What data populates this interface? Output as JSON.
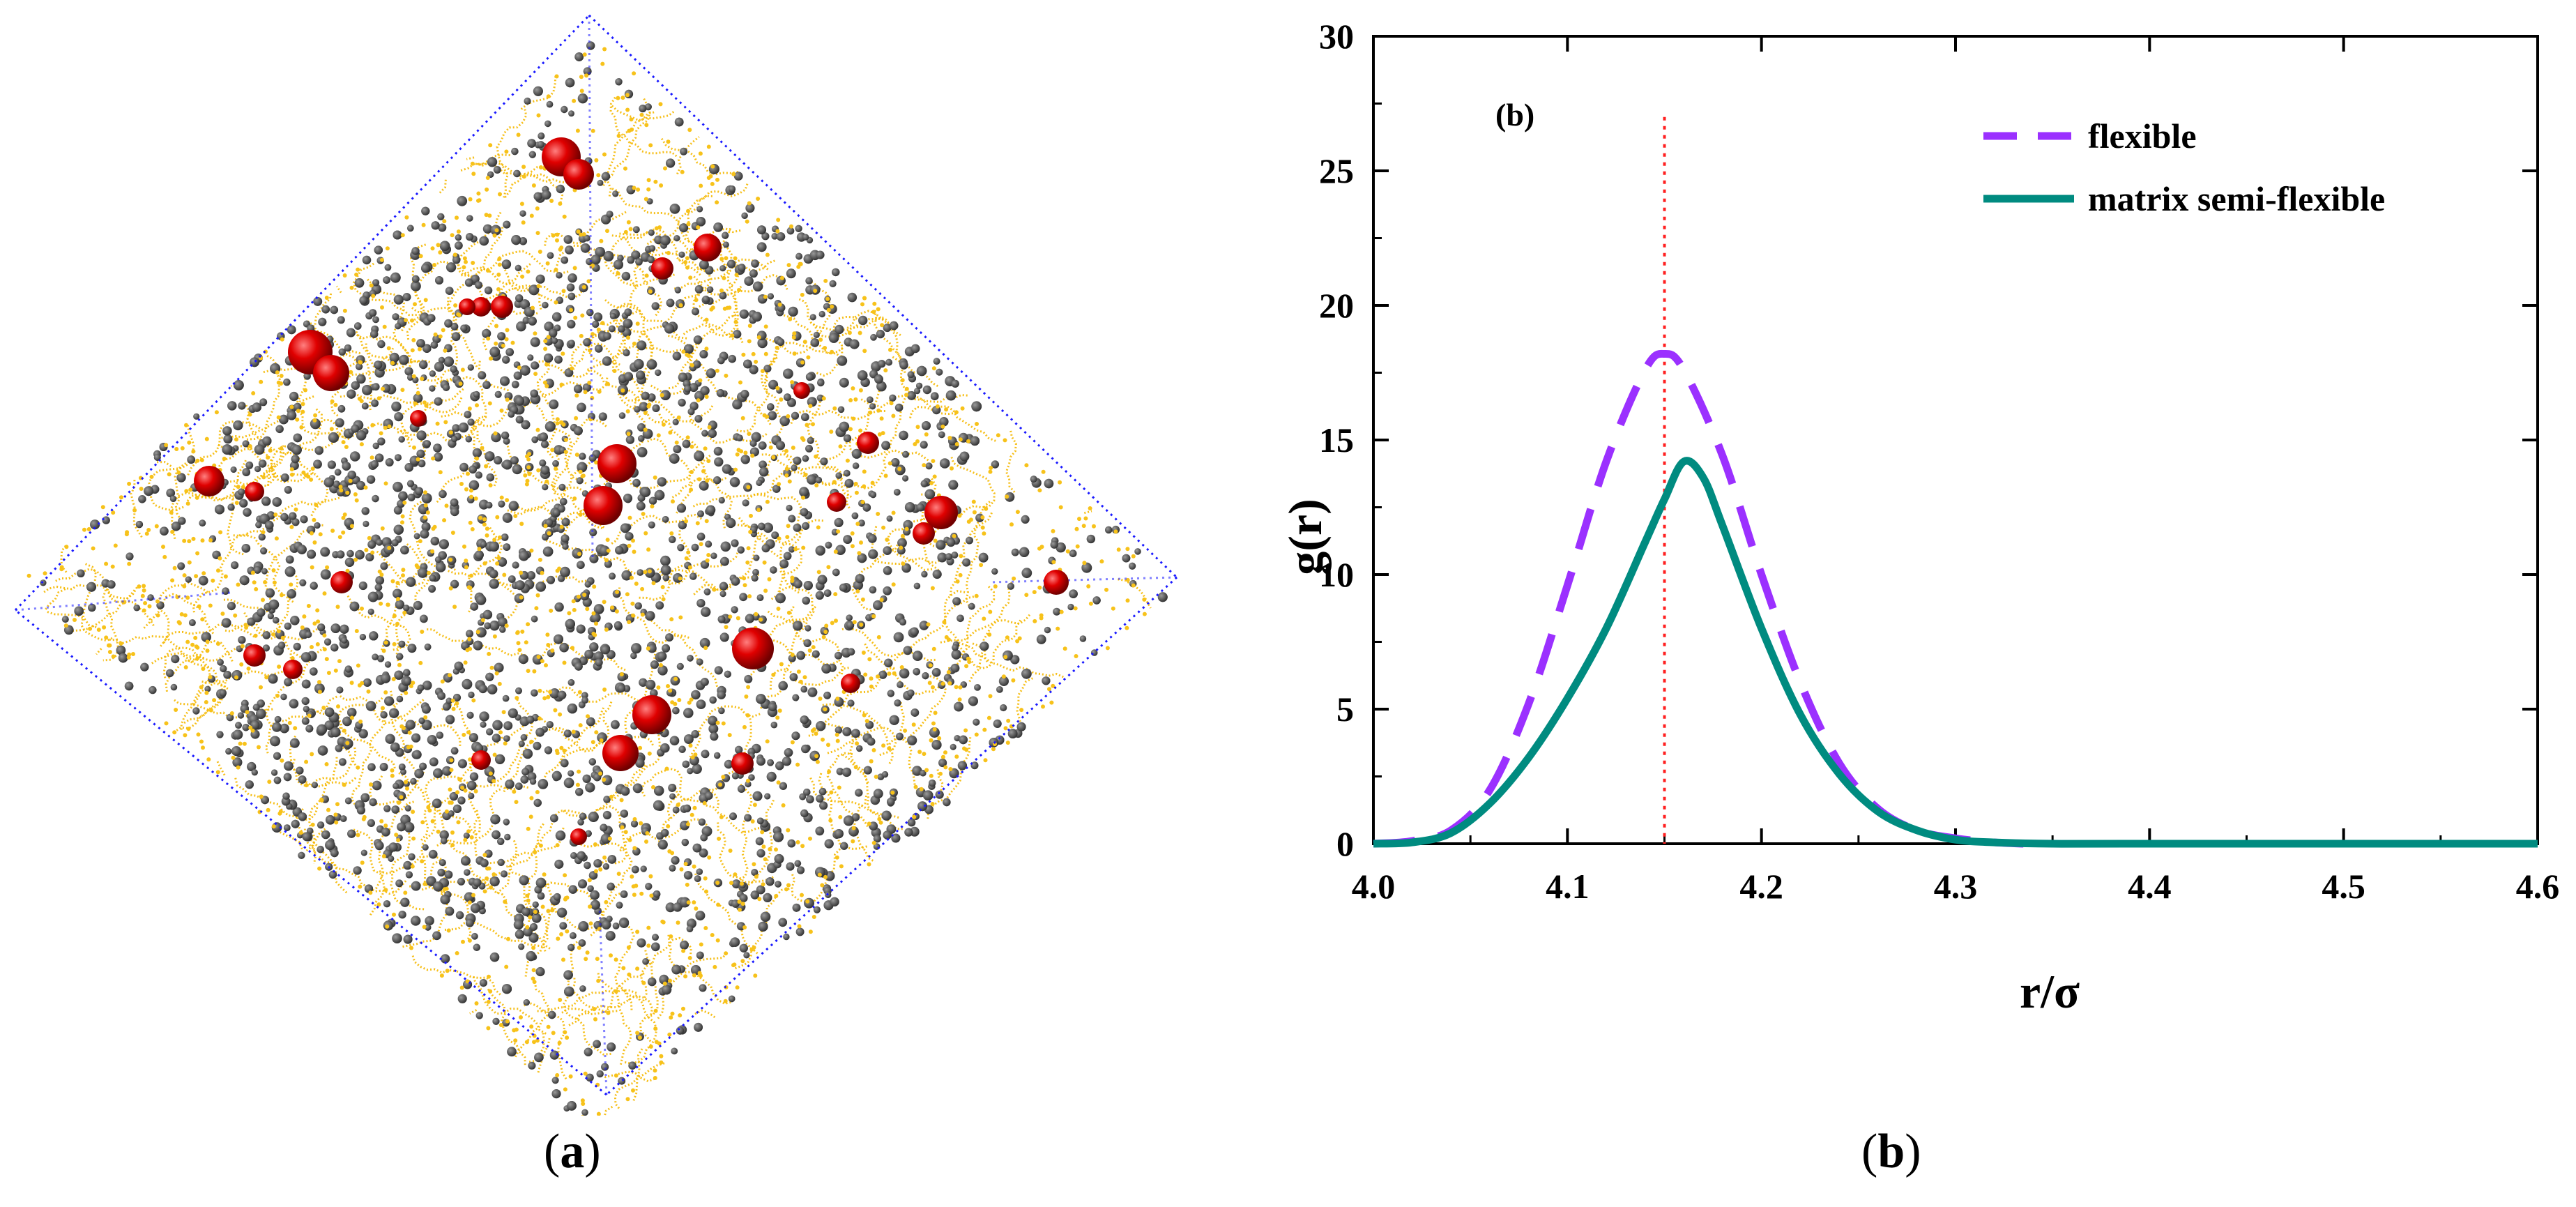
{
  "panels": {
    "a": {
      "caption_open": "(",
      "caption_letter": "a",
      "caption_close": ")",
      "description_colors": {
        "box_edge": "#1a1aff",
        "grey_beads": "#4a4a4a",
        "yellow_chains": "#f5b800",
        "red_particles": "#e00000"
      }
    },
    "b": {
      "caption_open": "(",
      "caption_letter": "b",
      "caption_close": ")"
    }
  },
  "chart_data": {
    "type": "line",
    "panel_label": "(b)",
    "xlabel": "r/σ",
    "ylabel": "g(r)",
    "xlim": [
      4.0,
      4.6
    ],
    "ylim": [
      0,
      30
    ],
    "xticks": [
      "4.0",
      "4.1",
      "4.2",
      "4.3",
      "4.4",
      "4.5",
      "4.6"
    ],
    "yticks": [
      "0",
      "5",
      "10",
      "15",
      "20",
      "25",
      "30"
    ],
    "reference_line_x": 4.15,
    "legend_position": "top-right",
    "series": [
      {
        "name": "flexible",
        "style": "dashed",
        "color": "#9b30ff",
        "x": [
          4.0,
          4.02,
          4.04,
          4.06,
          4.08,
          4.1,
          4.12,
          4.14,
          4.15,
          4.16,
          4.18,
          4.2,
          4.22,
          4.24,
          4.26,
          4.28,
          4.3,
          4.32,
          4.335
        ],
        "y": [
          0.0,
          0.1,
          0.5,
          2.0,
          5.2,
          9.6,
          14.2,
          17.6,
          18.2,
          17.6,
          14.4,
          10.0,
          6.0,
          3.0,
          1.3,
          0.5,
          0.2,
          0.05,
          0.0
        ]
      },
      {
        "name": "matrix semi-flexible",
        "style": "solid",
        "color": "#008b80",
        "x": [
          4.0,
          4.02,
          4.04,
          4.06,
          4.08,
          4.1,
          4.12,
          4.14,
          4.15,
          4.16,
          4.17,
          4.18,
          4.2,
          4.22,
          4.24,
          4.26,
          4.28,
          4.3,
          4.32,
          4.35,
          4.4,
          4.5,
          4.6
        ],
        "y": [
          0.0,
          0.05,
          0.4,
          1.5,
          3.2,
          5.4,
          8.0,
          11.2,
          12.8,
          14.2,
          13.6,
          11.8,
          8.0,
          4.8,
          2.6,
          1.2,
          0.5,
          0.15,
          0.05,
          0.0,
          0.0,
          0.0,
          0.0
        ]
      }
    ]
  }
}
